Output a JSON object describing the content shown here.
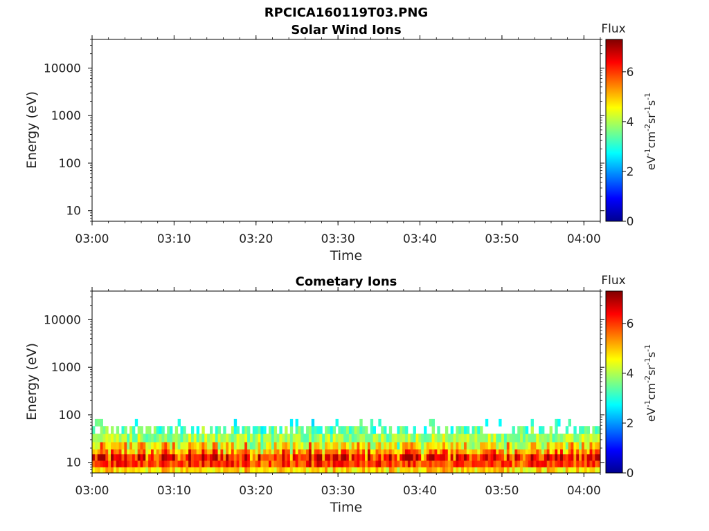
{
  "figure": {
    "title": "RPCICA160119T03.PNG"
  },
  "chart_data": [
    {
      "type": "heatmap",
      "title": "Solar Wind Ions",
      "xlabel": "Time",
      "ylabel": "Energy (eV)",
      "x_ticks": [
        "03:00",
        "03:10",
        "03:20",
        "03:30",
        "03:40",
        "03:50",
        "04:00"
      ],
      "xlim": [
        "03:00",
        "04:02"
      ],
      "y_scale": "log",
      "y_ticks": [
        10,
        100,
        1000,
        10000
      ],
      "y_tick_labels": [
        "10",
        "100",
        "1000",
        "10000"
      ],
      "ylim": [
        6,
        40000
      ],
      "colorbar": {
        "title": "Flux",
        "unit_label": "eV-1cm-2sr-1s-1",
        "ticks": [
          0,
          2,
          4,
          6
        ],
        "range": [
          0,
          7.3
        ],
        "colormap": "jet"
      },
      "data_summary": "no flux recorded (empty panel)",
      "flux_bands": []
    },
    {
      "type": "heatmap",
      "title": "Cometary Ions",
      "xlabel": "Time",
      "ylabel": "Energy (eV)",
      "x_ticks": [
        "03:00",
        "03:10",
        "03:20",
        "03:30",
        "03:40",
        "03:50",
        "04:00"
      ],
      "xlim": [
        "03:00",
        "04:02"
      ],
      "y_scale": "log",
      "y_ticks": [
        10,
        100,
        1000,
        10000
      ],
      "y_tick_labels": [
        "10",
        "100",
        "1000",
        "10000"
      ],
      "ylim": [
        6,
        40000
      ],
      "colorbar": {
        "title": "Flux",
        "unit_label": "eV-1cm-2sr-1s-1",
        "ticks": [
          0,
          2,
          4,
          6
        ],
        "range": [
          0,
          7.3
        ],
        "colormap": "jet"
      },
      "data_summary": "Flux present from ~6 eV to ~80 eV throughout 03:00-04:02; peak ~6-7 between ~8-18 eV",
      "flux_bands": [
        {
          "e_low": 6,
          "e_high": 8,
          "flux": 4.8
        },
        {
          "e_low": 8,
          "e_high": 11,
          "flux": 6.0
        },
        {
          "e_low": 11,
          "e_high": 15,
          "flux": 6.2
        },
        {
          "e_low": 15,
          "e_high": 19,
          "flux": 5.3
        },
        {
          "e_low": 19,
          "e_high": 27,
          "flux": 4.6
        },
        {
          "e_low": 27,
          "e_high": 40,
          "flux": 3.9
        },
        {
          "e_low": 40,
          "e_high": 58,
          "flux": 3.4
        },
        {
          "e_low": 58,
          "e_high": 82,
          "flux": 3.0
        }
      ]
    }
  ]
}
